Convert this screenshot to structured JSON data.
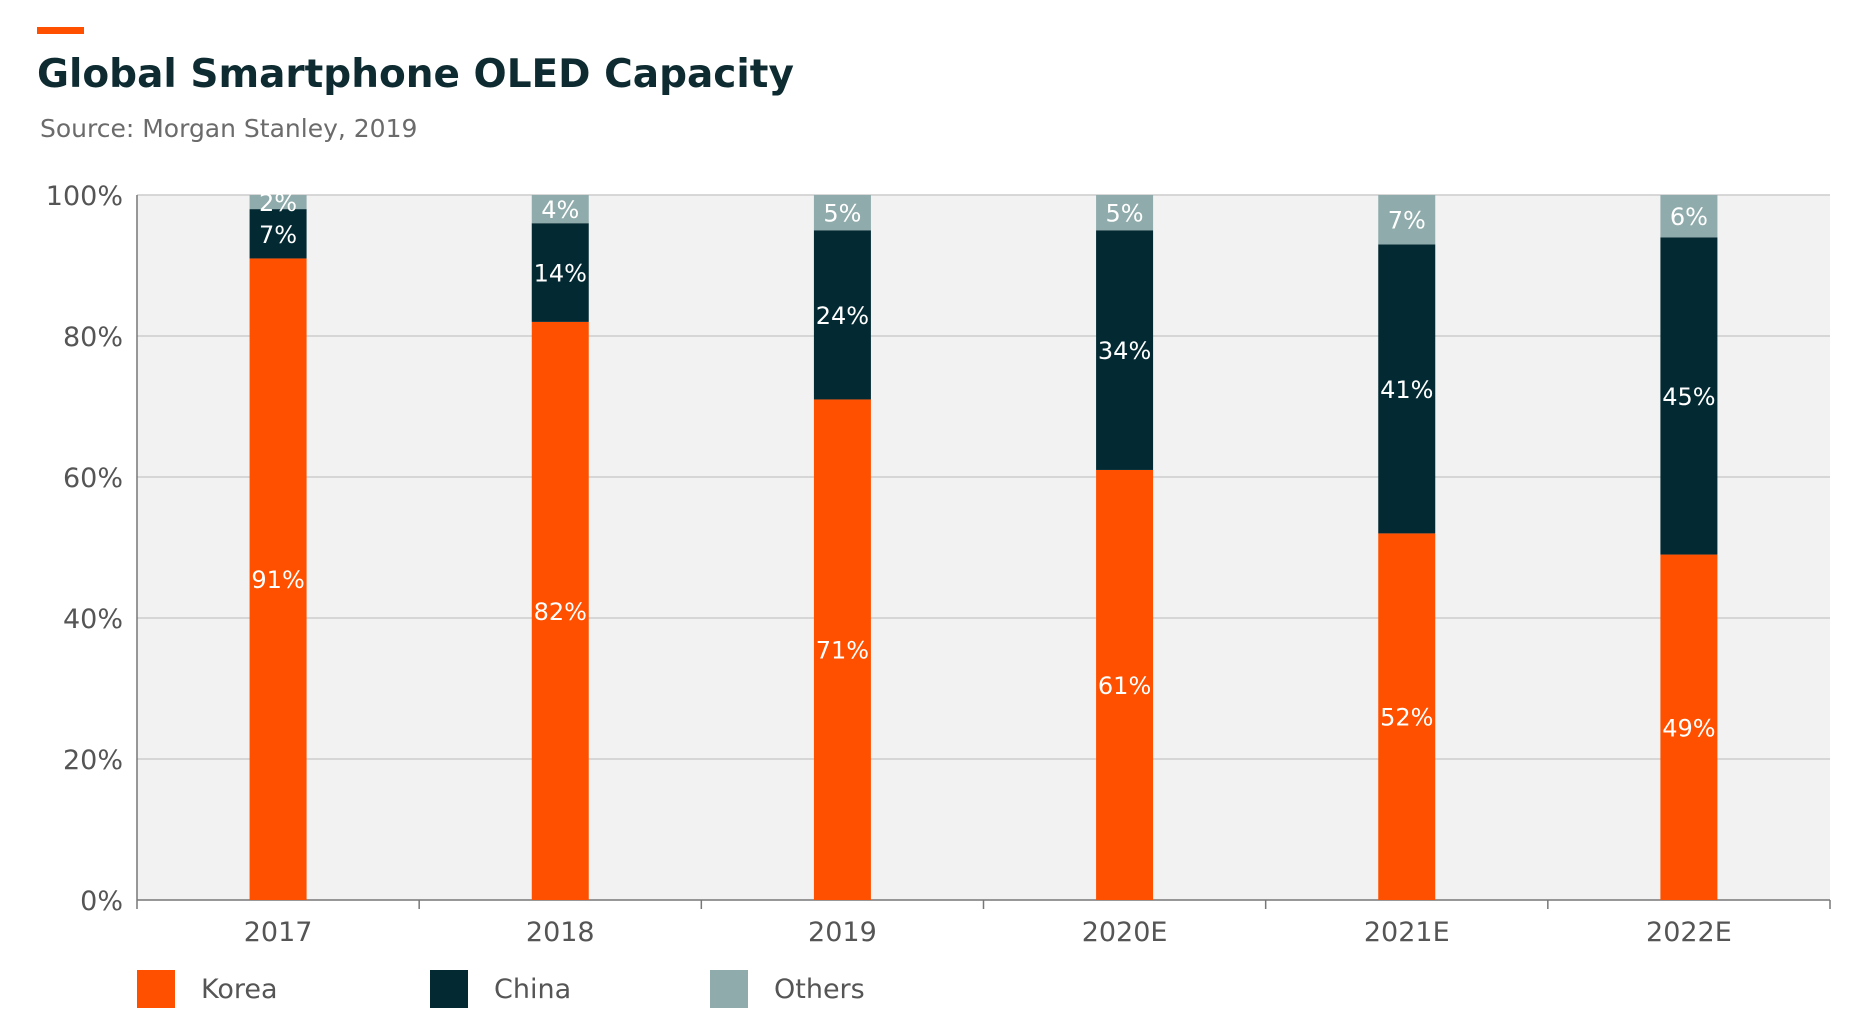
{
  "header": {
    "title": "Global Smartphone OLED Capacity",
    "subtitle": "Source: Morgan Stanley, 2019"
  },
  "colors": {
    "accent": "#ff5000",
    "korea": "#ff5000",
    "china": "#032a33",
    "others": "#8fabab",
    "plot_bg": "#f2f2f2",
    "grid": "#cccccc",
    "axis_text": "#555555"
  },
  "chart_data": {
    "type": "bar",
    "stacked": true,
    "categories": [
      "2017",
      "2018",
      "2019",
      "2020E",
      "2021E",
      "2022E"
    ],
    "series": [
      {
        "name": "Korea",
        "values": [
          91,
          82,
          71,
          61,
          52,
          49
        ],
        "labels": [
          "91%",
          "82%",
          "71%",
          "61%",
          "52%",
          "49%"
        ]
      },
      {
        "name": "China",
        "values": [
          7,
          14,
          24,
          34,
          41,
          45
        ],
        "labels": [
          "7%",
          "14%",
          "24%",
          "34%",
          "41%",
          "45%"
        ]
      },
      {
        "name": "Others",
        "values": [
          2,
          4,
          5,
          5,
          7,
          6
        ],
        "labels": [
          "2%",
          "4%",
          "5%",
          "5%",
          "7%",
          "6%"
        ]
      }
    ],
    "yaxis": {
      "ticks": [
        0,
        20,
        40,
        60,
        80,
        100
      ],
      "tick_labels": [
        "0%",
        "20%",
        "40%",
        "60%",
        "80%",
        "100%"
      ]
    },
    "ylim": [
      0,
      100
    ],
    "grid": true,
    "legend_position": "bottom-left"
  }
}
